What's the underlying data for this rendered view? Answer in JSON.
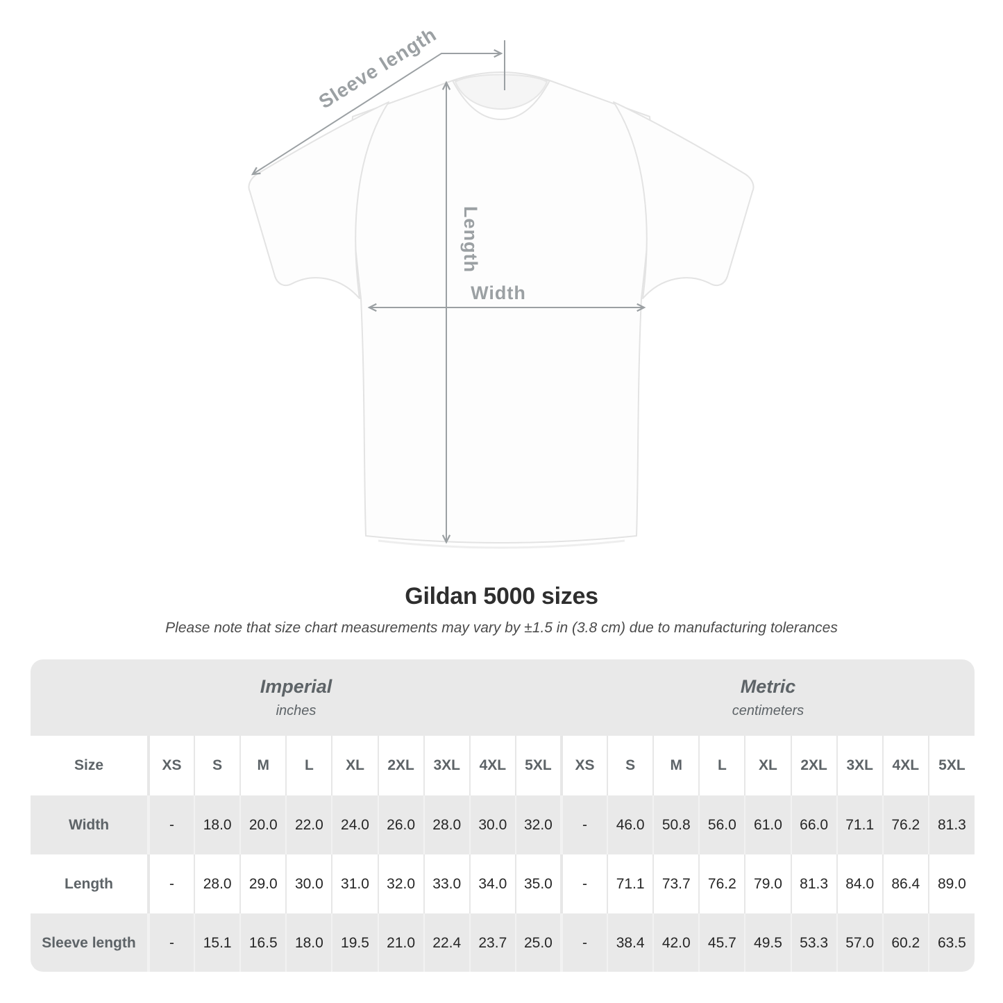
{
  "title": "Gildan 5000 sizes",
  "subtitle": "Please note that size chart measurements may vary by ±1.5 in (3.8 cm) due to manufacturing tolerances",
  "diagram": {
    "labels": {
      "sleeve_length": "Sleeve length",
      "length": "Length",
      "width": "Width"
    }
  },
  "colors": {
    "table_band_gray": "#e9e9e9",
    "annotation_gray": "#9ba0a3",
    "header_text_gray": "#5d6367",
    "value_text": "#262626",
    "shirt_outline": "#e3e3e3"
  },
  "chart_data": {
    "type": "table",
    "title": "Gildan 5000 sizes",
    "groups": [
      {
        "label": "Imperial",
        "sublabel": "inches"
      },
      {
        "label": "Metric",
        "sublabel": "centimeters"
      }
    ],
    "size_header": "Size",
    "sizes": [
      "XS",
      "S",
      "M",
      "L",
      "XL",
      "2XL",
      "3XL",
      "4XL",
      "5XL"
    ],
    "rows": [
      {
        "label": "Width",
        "imperial": [
          "-",
          "18.0",
          "20.0",
          "22.0",
          "24.0",
          "26.0",
          "28.0",
          "30.0",
          "32.0"
        ],
        "metric": [
          "-",
          "46.0",
          "50.8",
          "56.0",
          "61.0",
          "66.0",
          "71.1",
          "76.2",
          "81.3"
        ]
      },
      {
        "label": "Length",
        "imperial": [
          "-",
          "28.0",
          "29.0",
          "30.0",
          "31.0",
          "32.0",
          "33.0",
          "34.0",
          "35.0"
        ],
        "metric": [
          "-",
          "71.1",
          "73.7",
          "76.2",
          "79.0",
          "81.3",
          "84.0",
          "86.4",
          "89.0"
        ]
      },
      {
        "label": "Sleeve length",
        "imperial": [
          "-",
          "15.1",
          "16.5",
          "18.0",
          "19.5",
          "21.0",
          "22.4",
          "23.7",
          "25.0"
        ],
        "metric": [
          "-",
          "38.4",
          "42.0",
          "45.7",
          "49.5",
          "53.3",
          "57.0",
          "60.2",
          "63.5"
        ]
      }
    ]
  }
}
